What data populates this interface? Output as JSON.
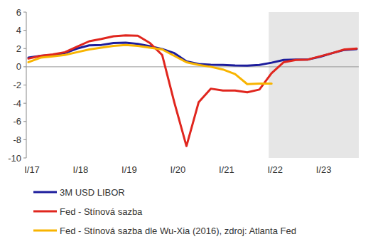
{
  "chart_data": {
    "type": "line",
    "categories": [
      "I/17",
      null,
      null,
      null,
      "I/18",
      null,
      null,
      null,
      "I/19",
      null,
      null,
      null,
      "I/20",
      null,
      null,
      null,
      "I/21",
      null,
      null,
      null,
      "I/22",
      null,
      null,
      null,
      "I/23",
      null,
      null,
      null
    ],
    "series": [
      {
        "name": "3M USD LIBOR",
        "color": "#1c1c9c",
        "values": [
          1.0,
          1.2,
          1.3,
          1.5,
          2.0,
          2.35,
          2.4,
          2.6,
          2.65,
          2.5,
          2.25,
          1.95,
          1.5,
          0.6,
          0.3,
          0.23,
          0.2,
          0.15,
          0.13,
          0.2,
          0.45,
          0.75,
          0.8,
          0.8,
          1.1,
          1.5,
          1.85,
          1.95
        ]
      },
      {
        "name": "Fed - Stínová sazba",
        "color": "#e0261e",
        "values": [
          0.9,
          1.2,
          1.35,
          1.6,
          2.2,
          2.8,
          3.05,
          3.35,
          3.45,
          3.4,
          2.6,
          1.3,
          -3.9,
          -8.7,
          -3.9,
          -2.4,
          -2.6,
          -2.6,
          -2.8,
          -2.5,
          -0.7,
          0.5,
          0.75,
          0.8,
          1.15,
          1.5,
          1.9,
          2.0
        ]
      },
      {
        "name": "Fed - Stínová sazba dle Wu-Xia (2016), zdroj: Atlanta Fed",
        "color": "#f8b400",
        "values": [
          0.5,
          1.0,
          1.15,
          1.3,
          1.6,
          1.9,
          2.1,
          2.3,
          2.4,
          2.3,
          2.1,
          1.9,
          1.2,
          0.5,
          0.2,
          0.0,
          -0.3,
          -0.8,
          -1.9,
          -1.85,
          -1.85,
          null,
          null,
          null,
          null,
          null,
          null,
          null
        ]
      }
    ],
    "ylim": [
      -10,
      6
    ],
    "yticks": [
      -10,
      -8,
      -6,
      -4,
      -2,
      0,
      2,
      4,
      6
    ],
    "shaded_from": "I/22",
    "grid": false,
    "legend": "bottom"
  }
}
